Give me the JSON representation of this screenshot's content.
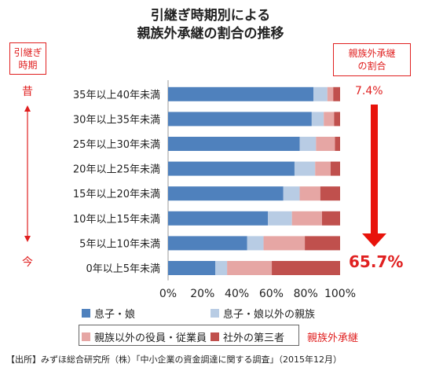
{
  "title_line1": "引継ぎ時期別による",
  "title_line2": "親族外承継の割合の推移",
  "left_label_line1": "引継ぎ",
  "left_label_line2": "時期",
  "right_label_line1": "親族外承継",
  "right_label_line2": "の割合",
  "past_mark": "昔",
  "present_mark": "今",
  "pct_top": "7.4%",
  "pct_bottom": "65.7%",
  "family_outside_label": "親族外承継",
  "source": "【出所】みずほ総合研究所（株）「中小企業の資金調達に関する調査」（2015年12月）",
  "colors": {
    "accent_red": "#e02020",
    "arrow": "#e8130b"
  },
  "chart_data": {
    "type": "bar",
    "orientation": "horizontal",
    "stacked": true,
    "categories": [
      "35年以上40年未満",
      "30年以上35年未満",
      "25年以上30年未満",
      "20年以上25年未満",
      "15年以上20年未満",
      "10年以上15年未満",
      "5年以上10年未満",
      "0年以上5年未満"
    ],
    "series": [
      {
        "name": "息子・娘",
        "color": "#4f81bd",
        "values": [
          84.5,
          83.5,
          76.5,
          73.5,
          67,
          58,
          46,
          27.5
        ]
      },
      {
        "name": "息子・娘以外の親族",
        "color": "#b8cce4",
        "values": [
          8.1,
          7,
          9.5,
          12,
          9.5,
          14,
          9.5,
          6.8
        ]
      },
      {
        "name": "親族以外の役員・従業員",
        "color": "#e6a6a4",
        "values": [
          3.4,
          6,
          11,
          9,
          12,
          17.5,
          24,
          26
        ]
      },
      {
        "name": "社外の第三者",
        "color": "#c0504d",
        "values": [
          4,
          3.5,
          3,
          5.5,
          11.5,
          10.5,
          20.5,
          39.7
        ]
      }
    ],
    "xlim": [
      0,
      100
    ],
    "x_ticks": [
      "0%",
      "20%",
      "40%",
      "60%",
      "80%",
      "100%"
    ],
    "grid": false,
    "legend_position": "bottom"
  }
}
